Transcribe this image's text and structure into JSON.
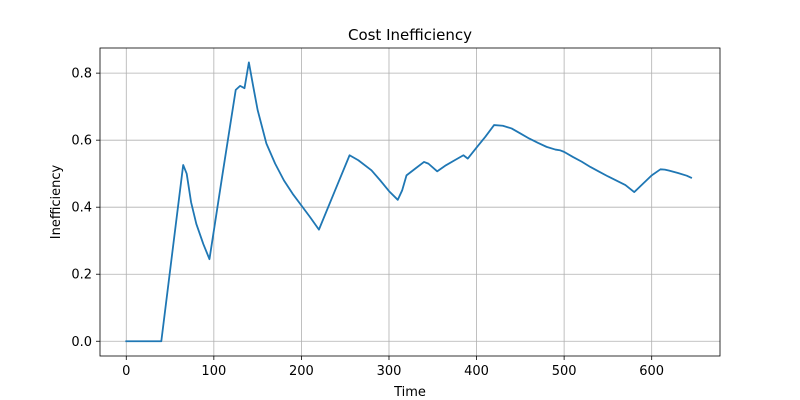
{
  "chart_data": {
    "type": "line",
    "title": "Cost Inefficiency",
    "xlabel": "Time",
    "ylabel": "Inefficiency",
    "xlim": [
      -30,
      678
    ],
    "ylim": [
      -0.044,
      0.875
    ],
    "xticks": [
      0,
      100,
      200,
      300,
      400,
      500,
      600
    ],
    "xtick_labels": [
      "0",
      "100",
      "200",
      "300",
      "400",
      "500",
      "600"
    ],
    "yticks": [
      0.0,
      0.2,
      0.4,
      0.6,
      0.8
    ],
    "ytick_labels": [
      "0.0",
      "0.2",
      "0.4",
      "0.6",
      "0.8"
    ],
    "grid": true,
    "series": [
      {
        "color": "#1f77b4",
        "x": [
          0,
          40,
          65,
          69,
          74,
          80,
          88,
          95,
          110,
          125,
          130,
          135,
          140,
          145,
          150,
          155,
          160,
          170,
          180,
          190,
          200,
          210,
          220,
          240,
          255,
          265,
          280,
          290,
          300,
          310,
          315,
          320,
          330,
          340,
          345,
          355,
          365,
          375,
          385,
          390,
          400,
          410,
          420,
          430,
          440,
          450,
          460,
          470,
          480,
          490,
          495,
          500,
          510,
          520,
          530,
          540,
          550,
          560,
          570,
          580,
          590,
          600,
          610,
          615,
          620,
          630,
          640,
          645
        ],
        "y": [
          0.0,
          0.0,
          0.526,
          0.5,
          0.415,
          0.35,
          0.29,
          0.245,
          0.5,
          0.75,
          0.762,
          0.755,
          0.832,
          0.76,
          0.69,
          0.64,
          0.59,
          0.53,
          0.48,
          0.44,
          0.405,
          0.37,
          0.333,
          0.46,
          0.555,
          0.54,
          0.51,
          0.48,
          0.448,
          0.422,
          0.45,
          0.495,
          0.515,
          0.535,
          0.53,
          0.507,
          0.525,
          0.54,
          0.555,
          0.545,
          0.578,
          0.61,
          0.645,
          0.643,
          0.635,
          0.62,
          0.605,
          0.592,
          0.58,
          0.572,
          0.57,
          0.565,
          0.55,
          0.536,
          0.52,
          0.506,
          0.492,
          0.479,
          0.466,
          0.445,
          0.47,
          0.495,
          0.513,
          0.512,
          0.509,
          0.502,
          0.494,
          0.488
        ]
      }
    ]
  }
}
